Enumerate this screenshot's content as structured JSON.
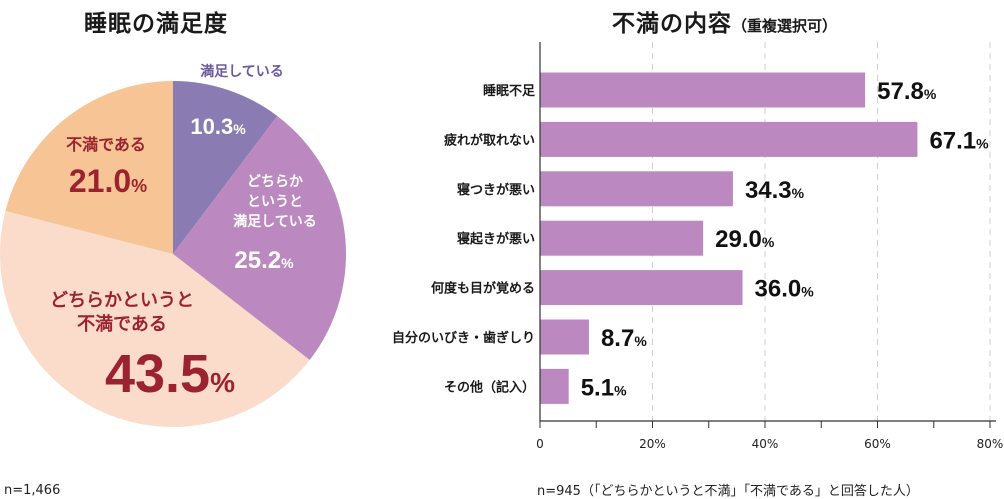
{
  "pie": {
    "title": "睡眠の満足度",
    "note": "n=1,466"
  },
  "bar": {
    "title": "不満の内容",
    "subtitle": "（重複選択可）",
    "note": "n=945（「どちらかというと不満」「不満である」と回答した人）"
  },
  "chart_data": [
    {
      "type": "pie",
      "title": "睡眠の満足度",
      "unit": "%",
      "slices": [
        {
          "label": "満足している",
          "value": 10.3,
          "color": "#8a7bb3"
        },
        {
          "label": "どちらかというと満足している",
          "value": 25.2,
          "color": "#bb89c0"
        },
        {
          "label": "どちらかというと不満である",
          "value": 43.5,
          "color": "#fbdcca"
        },
        {
          "label": "不満である",
          "value": 21.0,
          "color": "#f7c595"
        }
      ]
    },
    {
      "type": "bar",
      "orientation": "horizontal",
      "title": "不満の内容",
      "subtitle": "（重複選択可）",
      "unit": "%",
      "categories": [
        "睡眠不足",
        "疲れが取れない",
        "寝つきが悪い",
        "寝起きが悪い",
        "何度も目が覚める",
        "自分のいびき・歯ぎしり",
        "その他（記入）"
      ],
      "values": [
        57.8,
        67.1,
        34.3,
        29.0,
        36.0,
        8.7,
        5.1
      ],
      "xlim": [
        0,
        80
      ],
      "xticks": [
        "0",
        "20%",
        "40%",
        "60%",
        "80%"
      ],
      "grid": "vertical dashed",
      "bar_color": "#bb89c0"
    }
  ]
}
